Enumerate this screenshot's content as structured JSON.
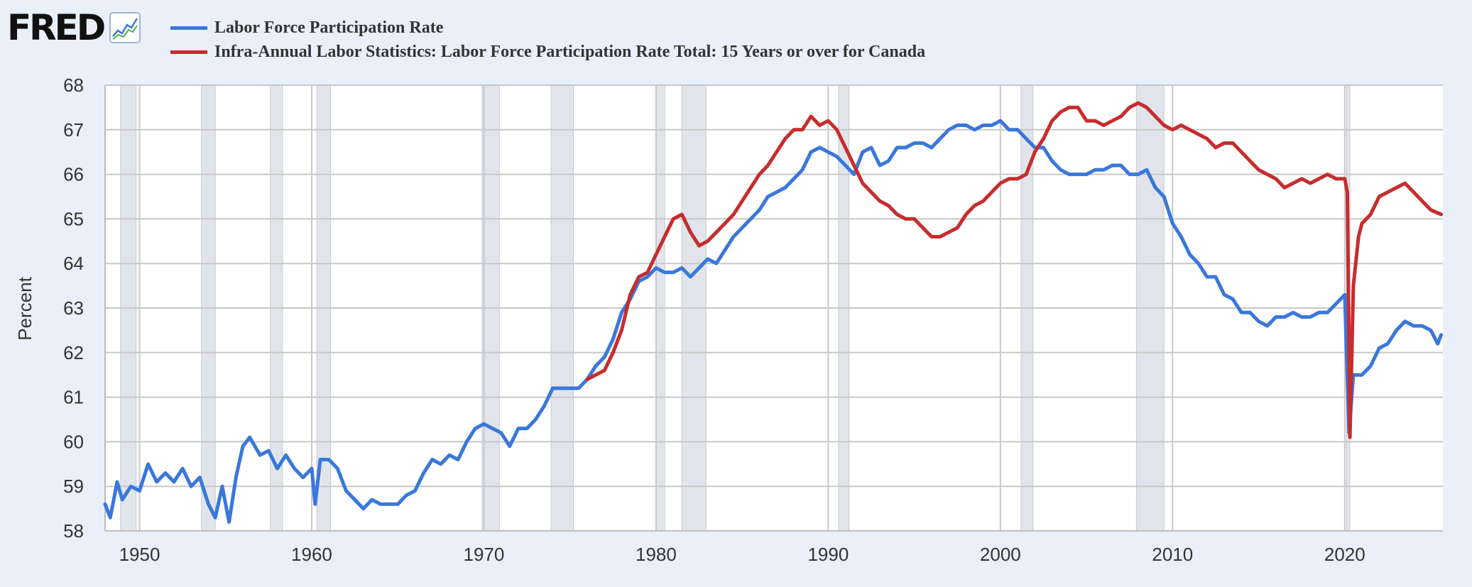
{
  "logo": {
    "text": "FRED",
    "icon": "line-chart-icon"
  },
  "colors": {
    "background": "#e9f0f9",
    "plot_background": "#ffffff",
    "gridline": "#c8c8c8",
    "recession": "#e1e5eb",
    "series_us": "#3a77db",
    "series_canada": "#c62d2d"
  },
  "legend": {
    "items": [
      {
        "label": "Labor Force Participation Rate",
        "color": "#3a77db"
      },
      {
        "label": "Infra-Annual Labor Statistics: Labor Force Participation Rate Total: 15 Years or over for Canada",
        "color": "#c62d2d"
      }
    ]
  },
  "chart_data": {
    "type": "line",
    "title": "",
    "ylabel": "Percent",
    "xlabel": "",
    "xlim": [
      1948,
      2025.7
    ],
    "ylim": [
      58,
      68
    ],
    "xticks": [
      1950,
      1960,
      1970,
      1980,
      1990,
      2000,
      2010,
      2020
    ],
    "yticks": [
      58,
      59,
      60,
      61,
      62,
      63,
      64,
      65,
      66,
      67,
      68
    ],
    "grid": true,
    "recessions": [
      [
        1948.9,
        1949.8
      ],
      [
        1953.6,
        1954.4
      ],
      [
        1957.6,
        1958.3
      ],
      [
        1960.3,
        1961.1
      ],
      [
        1969.9,
        1970.9
      ],
      [
        1973.9,
        1975.2
      ],
      [
        1980.0,
        1980.5
      ],
      [
        1981.5,
        1982.9
      ],
      [
        1990.6,
        1991.2
      ],
      [
        2001.2,
        2001.9
      ],
      [
        2007.9,
        2009.5
      ],
      [
        2020.1,
        2020.3
      ]
    ],
    "series": [
      {
        "name": "Labor Force Participation Rate",
        "color": "#3a77db",
        "points": [
          [
            1948.0,
            58.6
          ],
          [
            1948.3,
            58.3
          ],
          [
            1948.7,
            59.1
          ],
          [
            1949.0,
            58.7
          ],
          [
            1949.5,
            59.0
          ],
          [
            1950.0,
            58.9
          ],
          [
            1950.5,
            59.5
          ],
          [
            1951.0,
            59.1
          ],
          [
            1951.5,
            59.3
          ],
          [
            1952.0,
            59.1
          ],
          [
            1952.5,
            59.4
          ],
          [
            1953.0,
            59.0
          ],
          [
            1953.5,
            59.2
          ],
          [
            1954.0,
            58.6
          ],
          [
            1954.4,
            58.3
          ],
          [
            1954.8,
            59.0
          ],
          [
            1955.2,
            58.2
          ],
          [
            1955.6,
            59.2
          ],
          [
            1956.0,
            59.9
          ],
          [
            1956.4,
            60.1
          ],
          [
            1957.0,
            59.7
          ],
          [
            1957.5,
            59.8
          ],
          [
            1958.0,
            59.4
          ],
          [
            1958.5,
            59.7
          ],
          [
            1959.0,
            59.4
          ],
          [
            1959.5,
            59.2
          ],
          [
            1960.0,
            59.4
          ],
          [
            1960.2,
            58.6
          ],
          [
            1960.5,
            59.6
          ],
          [
            1961.0,
            59.6
          ],
          [
            1961.5,
            59.4
          ],
          [
            1962.0,
            58.9
          ],
          [
            1962.5,
            58.7
          ],
          [
            1963.0,
            58.5
          ],
          [
            1963.5,
            58.7
          ],
          [
            1964.0,
            58.6
          ],
          [
            1964.5,
            58.6
          ],
          [
            1965.0,
            58.6
          ],
          [
            1965.5,
            58.8
          ],
          [
            1966.0,
            58.9
          ],
          [
            1966.5,
            59.3
          ],
          [
            1967.0,
            59.6
          ],
          [
            1967.5,
            59.5
          ],
          [
            1968.0,
            59.7
          ],
          [
            1968.5,
            59.6
          ],
          [
            1969.0,
            60.0
          ],
          [
            1969.5,
            60.3
          ],
          [
            1970.0,
            60.4
          ],
          [
            1970.5,
            60.3
          ],
          [
            1971.0,
            60.2
          ],
          [
            1971.5,
            59.9
          ],
          [
            1972.0,
            60.3
          ],
          [
            1972.5,
            60.3
          ],
          [
            1973.0,
            60.5
          ],
          [
            1973.5,
            60.8
          ],
          [
            1974.0,
            61.2
          ],
          [
            1974.5,
            61.2
          ],
          [
            1975.0,
            61.2
          ],
          [
            1975.5,
            61.2
          ],
          [
            1976.0,
            61.4
          ],
          [
            1976.5,
            61.7
          ],
          [
            1977.0,
            61.9
          ],
          [
            1977.5,
            62.3
          ],
          [
            1978.0,
            62.9
          ],
          [
            1978.5,
            63.2
          ],
          [
            1979.0,
            63.6
          ],
          [
            1979.5,
            63.7
          ],
          [
            1980.0,
            63.9
          ],
          [
            1980.5,
            63.8
          ],
          [
            1981.0,
            63.8
          ],
          [
            1981.5,
            63.9
          ],
          [
            1982.0,
            63.7
          ],
          [
            1982.5,
            63.9
          ],
          [
            1983.0,
            64.1
          ],
          [
            1983.5,
            64.0
          ],
          [
            1984.0,
            64.3
          ],
          [
            1984.5,
            64.6
          ],
          [
            1985.0,
            64.8
          ],
          [
            1985.5,
            65.0
          ],
          [
            1986.0,
            65.2
          ],
          [
            1986.5,
            65.5
          ],
          [
            1987.0,
            65.6
          ],
          [
            1987.5,
            65.7
          ],
          [
            1988.0,
            65.9
          ],
          [
            1988.5,
            66.1
          ],
          [
            1989.0,
            66.5
          ],
          [
            1989.5,
            66.6
          ],
          [
            1990.0,
            66.5
          ],
          [
            1990.5,
            66.4
          ],
          [
            1991.0,
            66.2
          ],
          [
            1991.5,
            66.0
          ],
          [
            1992.0,
            66.5
          ],
          [
            1992.5,
            66.6
          ],
          [
            1993.0,
            66.2
          ],
          [
            1993.5,
            66.3
          ],
          [
            1994.0,
            66.6
          ],
          [
            1994.5,
            66.6
          ],
          [
            1995.0,
            66.7
          ],
          [
            1995.5,
            66.7
          ],
          [
            1996.0,
            66.6
          ],
          [
            1996.5,
            66.8
          ],
          [
            1997.0,
            67.0
          ],
          [
            1997.5,
            67.1
          ],
          [
            1998.0,
            67.1
          ],
          [
            1998.5,
            67.0
          ],
          [
            1999.0,
            67.1
          ],
          [
            1999.5,
            67.1
          ],
          [
            2000.0,
            67.2
          ],
          [
            2000.5,
            67.0
          ],
          [
            2001.0,
            67.0
          ],
          [
            2001.5,
            66.8
          ],
          [
            2002.0,
            66.6
          ],
          [
            2002.5,
            66.6
          ],
          [
            2003.0,
            66.3
          ],
          [
            2003.5,
            66.1
          ],
          [
            2004.0,
            66.0
          ],
          [
            2004.5,
            66.0
          ],
          [
            2005.0,
            66.0
          ],
          [
            2005.5,
            66.1
          ],
          [
            2006.0,
            66.1
          ],
          [
            2006.5,
            66.2
          ],
          [
            2007.0,
            66.2
          ],
          [
            2007.5,
            66.0
          ],
          [
            2008.0,
            66.0
          ],
          [
            2008.5,
            66.1
          ],
          [
            2009.0,
            65.7
          ],
          [
            2009.5,
            65.5
          ],
          [
            2010.0,
            64.9
          ],
          [
            2010.5,
            64.6
          ],
          [
            2011.0,
            64.2
          ],
          [
            2011.5,
            64.0
          ],
          [
            2012.0,
            63.7
          ],
          [
            2012.5,
            63.7
          ],
          [
            2013.0,
            63.3
          ],
          [
            2013.5,
            63.2
          ],
          [
            2014.0,
            62.9
          ],
          [
            2014.5,
            62.9
          ],
          [
            2015.0,
            62.7
          ],
          [
            2015.5,
            62.6
          ],
          [
            2016.0,
            62.8
          ],
          [
            2016.5,
            62.8
          ],
          [
            2017.0,
            62.9
          ],
          [
            2017.5,
            62.8
          ],
          [
            2018.0,
            62.8
          ],
          [
            2018.5,
            62.9
          ],
          [
            2019.0,
            62.9
          ],
          [
            2019.5,
            63.1
          ],
          [
            2020.0,
            63.3
          ],
          [
            2020.25,
            60.2
          ],
          [
            2020.5,
            61.5
          ],
          [
            2021.0,
            61.5
          ],
          [
            2021.5,
            61.7
          ],
          [
            2022.0,
            62.1
          ],
          [
            2022.5,
            62.2
          ],
          [
            2023.0,
            62.5
          ],
          [
            2023.5,
            62.7
          ],
          [
            2024.0,
            62.6
          ],
          [
            2024.5,
            62.6
          ],
          [
            2025.0,
            62.5
          ],
          [
            2025.4,
            62.2
          ],
          [
            2025.6,
            62.4
          ]
        ]
      },
      {
        "name": "Infra-Annual Labor Statistics: Labor Force Participation Rate Total: 15 Years or over for Canada",
        "color": "#c62d2d",
        "points": [
          [
            1976.0,
            61.4
          ],
          [
            1976.5,
            61.5
          ],
          [
            1977.0,
            61.6
          ],
          [
            1977.5,
            62.0
          ],
          [
            1978.0,
            62.5
          ],
          [
            1978.5,
            63.3
          ],
          [
            1979.0,
            63.7
          ],
          [
            1979.5,
            63.8
          ],
          [
            1980.0,
            64.2
          ],
          [
            1980.5,
            64.6
          ],
          [
            1981.0,
            65.0
          ],
          [
            1981.5,
            65.1
          ],
          [
            1982.0,
            64.7
          ],
          [
            1982.5,
            64.4
          ],
          [
            1983.0,
            64.5
          ],
          [
            1983.5,
            64.7
          ],
          [
            1984.0,
            64.9
          ],
          [
            1984.5,
            65.1
          ],
          [
            1985.0,
            65.4
          ],
          [
            1985.5,
            65.7
          ],
          [
            1986.0,
            66.0
          ],
          [
            1986.5,
            66.2
          ],
          [
            1987.0,
            66.5
          ],
          [
            1987.5,
            66.8
          ],
          [
            1988.0,
            67.0
          ],
          [
            1988.5,
            67.0
          ],
          [
            1989.0,
            67.3
          ],
          [
            1989.5,
            67.1
          ],
          [
            1990.0,
            67.2
          ],
          [
            1990.5,
            67.0
          ],
          [
            1991.0,
            66.6
          ],
          [
            1991.5,
            66.2
          ],
          [
            1992.0,
            65.8
          ],
          [
            1992.5,
            65.6
          ],
          [
            1993.0,
            65.4
          ],
          [
            1993.5,
            65.3
          ],
          [
            1994.0,
            65.1
          ],
          [
            1994.5,
            65.0
          ],
          [
            1995.0,
            65.0
          ],
          [
            1995.5,
            64.8
          ],
          [
            1996.0,
            64.6
          ],
          [
            1996.5,
            64.6
          ],
          [
            1997.0,
            64.7
          ],
          [
            1997.5,
            64.8
          ],
          [
            1998.0,
            65.1
          ],
          [
            1998.5,
            65.3
          ],
          [
            1999.0,
            65.4
          ],
          [
            1999.5,
            65.6
          ],
          [
            2000.0,
            65.8
          ],
          [
            2000.5,
            65.9
          ],
          [
            2001.0,
            65.9
          ],
          [
            2001.5,
            66.0
          ],
          [
            2002.0,
            66.5
          ],
          [
            2002.5,
            66.8
          ],
          [
            2003.0,
            67.2
          ],
          [
            2003.5,
            67.4
          ],
          [
            2004.0,
            67.5
          ],
          [
            2004.5,
            67.5
          ],
          [
            2005.0,
            67.2
          ],
          [
            2005.5,
            67.2
          ],
          [
            2006.0,
            67.1
          ],
          [
            2006.5,
            67.2
          ],
          [
            2007.0,
            67.3
          ],
          [
            2007.5,
            67.5
          ],
          [
            2008.0,
            67.6
          ],
          [
            2008.5,
            67.5
          ],
          [
            2009.0,
            67.3
          ],
          [
            2009.5,
            67.1
          ],
          [
            2010.0,
            67.0
          ],
          [
            2010.5,
            67.1
          ],
          [
            2011.0,
            67.0
          ],
          [
            2011.5,
            66.9
          ],
          [
            2012.0,
            66.8
          ],
          [
            2012.5,
            66.6
          ],
          [
            2013.0,
            66.7
          ],
          [
            2013.5,
            66.7
          ],
          [
            2014.0,
            66.5
          ],
          [
            2014.5,
            66.3
          ],
          [
            2015.0,
            66.1
          ],
          [
            2015.5,
            66.0
          ],
          [
            2016.0,
            65.9
          ],
          [
            2016.5,
            65.7
          ],
          [
            2017.0,
            65.8
          ],
          [
            2017.5,
            65.9
          ],
          [
            2018.0,
            65.8
          ],
          [
            2018.5,
            65.9
          ],
          [
            2019.0,
            66.0
          ],
          [
            2019.5,
            65.9
          ],
          [
            2020.0,
            65.9
          ],
          [
            2020.15,
            65.6
          ],
          [
            2020.3,
            60.1
          ],
          [
            2020.5,
            63.5
          ],
          [
            2020.8,
            64.6
          ],
          [
            2021.0,
            64.9
          ],
          [
            2021.5,
            65.1
          ],
          [
            2022.0,
            65.5
          ],
          [
            2022.5,
            65.6
          ],
          [
            2023.0,
            65.7
          ],
          [
            2023.5,
            65.8
          ],
          [
            2024.0,
            65.6
          ],
          [
            2024.5,
            65.4
          ],
          [
            2025.0,
            65.2
          ],
          [
            2025.6,
            65.1
          ]
        ]
      }
    ]
  }
}
